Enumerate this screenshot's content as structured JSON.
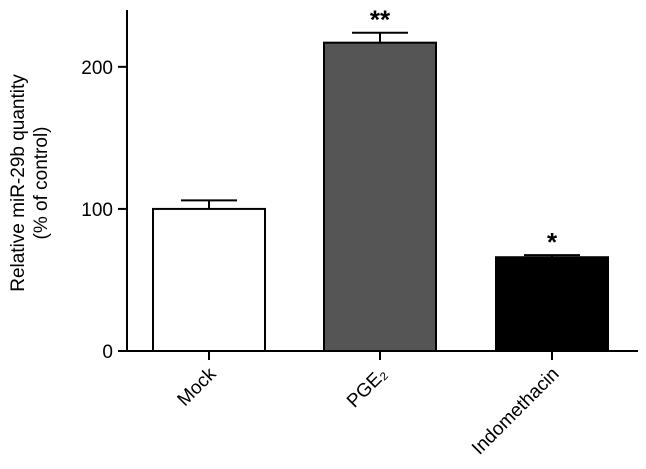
{
  "chart_data": {
    "type": "bar",
    "categories": [
      "Mock",
      "PGE₂",
      "Indomethacin"
    ],
    "values": [
      100,
      217,
      66
    ],
    "errors": [
      6,
      7,
      1.5
    ],
    "significance": [
      "",
      "**",
      "*"
    ],
    "colors": [
      "#ffffff",
      "#555555",
      "#000000"
    ],
    "ylabel_lines": [
      "Relative miR-29b quantity",
      "(% of control)"
    ],
    "yticks": [
      0,
      100,
      200
    ],
    "ylim": [
      0,
      240
    ],
    "grid": false,
    "legend": "none"
  }
}
